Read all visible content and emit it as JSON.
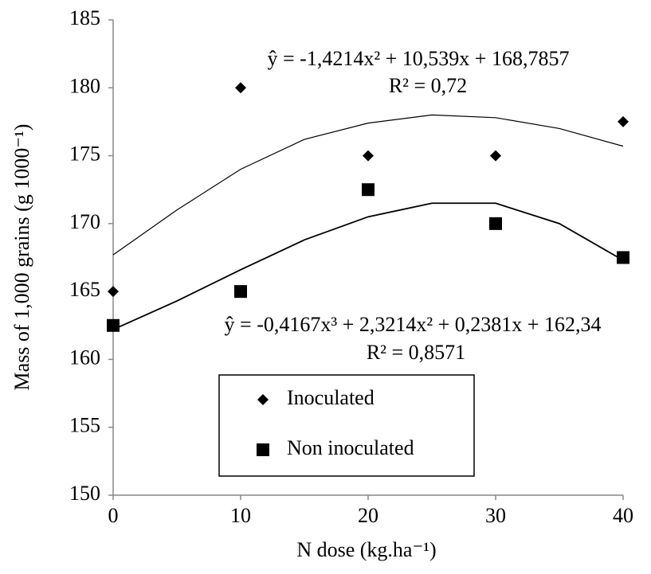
{
  "chart_data": {
    "type": "scatter",
    "x_label": "N dose (kg.ha⁻¹)",
    "y_label": "Mass of 1,000  grains (g 1000⁻¹)",
    "xlim": [
      0,
      40
    ],
    "xticks": [
      0,
      10,
      20,
      30,
      40
    ],
    "ylim": [
      150,
      185
    ],
    "yticks": [
      150,
      155,
      160,
      165,
      170,
      175,
      180,
      185
    ],
    "grid": false,
    "annotations": [
      "ŷ = -1,4214x² + 10,539x + 168,7857",
      "R² = 0,72",
      "ŷ = -0,4167x³ + 2,3214x² + 0,2381x + 162,34",
      "R² = 0,8571"
    ],
    "series": [
      {
        "name": "Inoculated",
        "marker": "diamond",
        "color": "#000000",
        "x": [
          0,
          10,
          20,
          30,
          40
        ],
        "values": [
          165,
          180,
          175,
          175,
          177.5
        ],
        "trend_x": [
          0,
          5,
          10,
          15,
          20,
          25,
          30,
          35,
          40
        ],
        "trend_values": [
          167.7,
          171,
          174,
          176.2,
          177.4,
          178,
          177.8,
          177,
          175.7
        ]
      },
      {
        "name": "Non inoculated",
        "marker": "square",
        "color": "#000000",
        "x": [
          0,
          10,
          20,
          30,
          40
        ],
        "values": [
          162.5,
          165,
          172.5,
          170,
          167.5
        ],
        "trend_x": [
          0,
          5,
          10,
          15,
          20,
          25,
          30,
          35,
          40
        ],
        "trend_values": [
          162.2,
          164.3,
          166.6,
          168.8,
          170.5,
          171.5,
          171.5,
          170,
          167.3
        ]
      }
    ]
  }
}
